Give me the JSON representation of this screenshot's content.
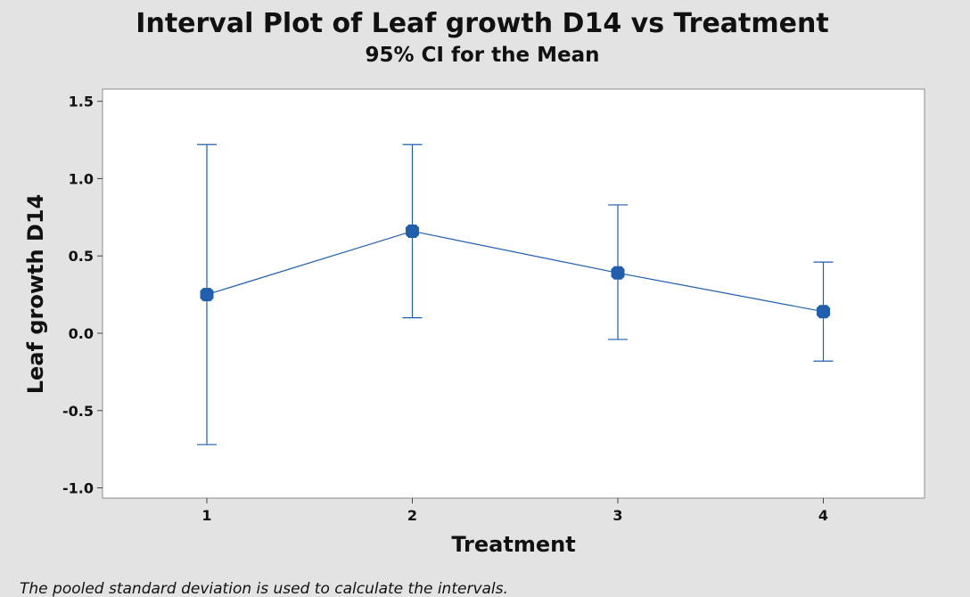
{
  "chart_data": {
    "type": "interval",
    "title": "Interval Plot of Leaf growth D14 vs Treatment",
    "subtitle": "95% CI for the Mean",
    "xlabel": "Treatment",
    "ylabel": "Leaf growth D14",
    "categories": [
      "1",
      "2",
      "3",
      "4"
    ],
    "means": [
      0.25,
      0.66,
      0.39,
      0.14
    ],
    "lower": [
      -0.72,
      0.1,
      -0.04,
      -0.18
    ],
    "upper": [
      1.22,
      1.22,
      0.83,
      0.46
    ],
    "ylim": [
      -1.02,
      1.55
    ],
    "yticks": [
      -1.0,
      -0.5,
      0.0,
      0.5,
      1.0,
      1.5
    ],
    "ytick_labels": [
      "-1.0",
      "-0.5",
      "0.0",
      "0.5",
      "1.0",
      "1.5"
    ],
    "footnote": "The pooled standard deviation is used to calculate the intervals.",
    "series_color": "#1f5fad",
    "grid": false
  }
}
